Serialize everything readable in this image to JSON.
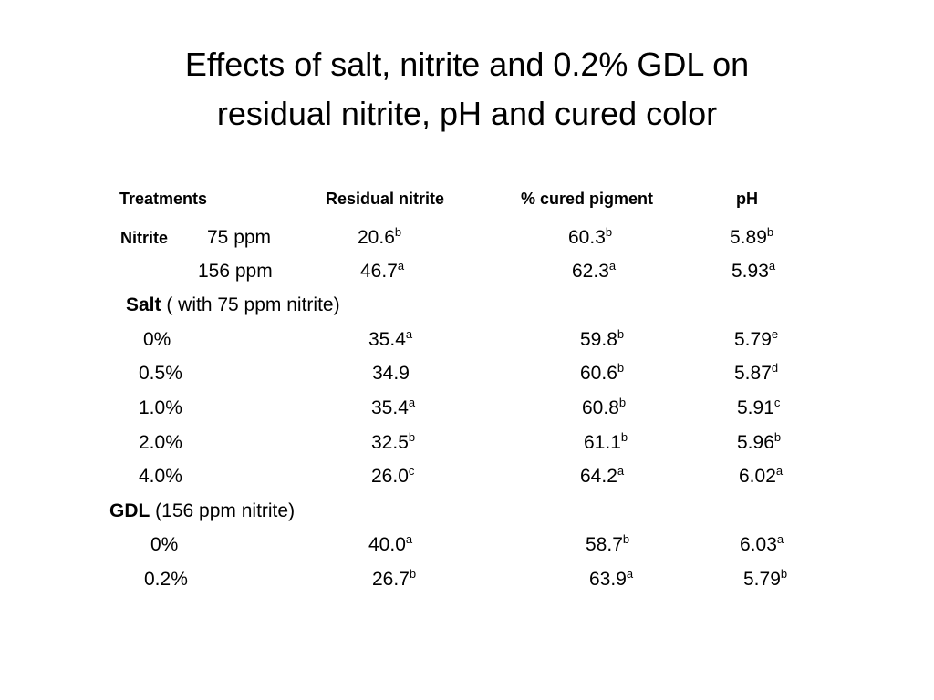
{
  "title": "Effects of salt, nitrite and 0.2% GDL on residual nitrite, pH and cured color",
  "table": {
    "headers": [
      "Treatments",
      "Residual nitrite",
      "% cured pigment",
      "pH"
    ],
    "groups": [
      {
        "label": "Nitrite",
        "rows": [
          {
            "treatment": "75 ppm",
            "cells": [
              {
                "value": "20.6",
                "sup": "b"
              },
              {
                "value": "60.3",
                "sup": "b"
              },
              {
                "value": "5.89",
                "sup": "b"
              }
            ]
          },
          {
            "treatment": "156 ppm",
            "cells": [
              {
                "value": "46.7",
                "sup": "a"
              },
              {
                "value": "62.3",
                "sup": "a"
              },
              {
                "value": "5.93",
                "sup": "a"
              }
            ]
          }
        ]
      },
      {
        "label": "Salt",
        "note": "( with 75 ppm nitrite)",
        "rows": [
          {
            "treatment": "0%",
            "cells": [
              {
                "value": "35.4",
                "sup": "a"
              },
              {
                "value": "59.8",
                "sup": "b"
              },
              {
                "value": "5.79",
                "sup": "e"
              }
            ]
          },
          {
            "treatment": "0.5%",
            "cells": [
              {
                "value": "34.9"
              },
              {
                "value": "60.6",
                "sup": "b"
              },
              {
                "value": "5.87",
                "sup": "d"
              }
            ]
          },
          {
            "treatment": "1.0%",
            "cells": [
              {
                "value": "35.4",
                "sup": "a"
              },
              {
                "value": "60.8",
                "sup": "b"
              },
              {
                "value": "5.91",
                "sup": "c"
              }
            ]
          },
          {
            "treatment": "2.0%",
            "cells": [
              {
                "value": "32.5",
                "sup": "b"
              },
              {
                "value": "61.1",
                "sup": "b"
              },
              {
                "value": "5.96",
                "sup": "b"
              }
            ]
          },
          {
            "treatment": "4.0%",
            "cells": [
              {
                "value": "26.0",
                "sup": "c"
              },
              {
                "value": "64.2",
                "sup": "a"
              },
              {
                "value": "6.02",
                "sup": "a"
              }
            ]
          }
        ]
      },
      {
        "label": "GDL",
        "note": "(156 ppm nitrite)",
        "rows": [
          {
            "treatment": "0%",
            "cells": [
              {
                "value": "40.0",
                "sup": "a"
              },
              {
                "value": "58.7",
                "sup": "b"
              },
              {
                "value": "6.03",
                "sup": "a"
              }
            ]
          },
          {
            "treatment": "0.2%",
            "cells": [
              {
                "value": "26.7",
                "sup": "b"
              },
              {
                "value": "63.9",
                "sup": "a"
              },
              {
                "value": "5.79",
                "sup": "b"
              }
            ]
          }
        ]
      }
    ]
  }
}
